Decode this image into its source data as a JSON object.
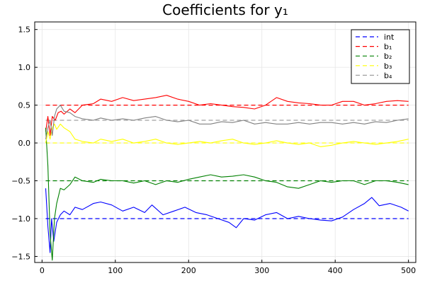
{
  "chart_data": {
    "type": "line",
    "title": "Coefficients for y₁",
    "xlabel": "",
    "ylabel": "",
    "xlim": [
      -10,
      510
    ],
    "ylim": [
      -1.58,
      1.6
    ],
    "xticks": [
      0,
      100,
      200,
      300,
      400,
      500
    ],
    "xtick_labels": [
      "0",
      "100",
      "200",
      "300",
      "400",
      "500"
    ],
    "yticks": [
      -1.5,
      -1.0,
      -0.5,
      0.0,
      0.5,
      1.0,
      1.5
    ],
    "ytick_labels": [
      "−1.5",
      "−1.0",
      "−0.5",
      "0.0",
      "0.5",
      "1.0",
      "1.5"
    ],
    "grid": true,
    "legend_position": "top-right",
    "reference_lines": [
      {
        "name": "int",
        "y": -1.0,
        "color": "#0000ff"
      },
      {
        "name": "b₁",
        "y": 0.5,
        "color": "#ff0000"
      },
      {
        "name": "b₂",
        "y": -0.5,
        "color": "#008000"
      },
      {
        "name": "b₃",
        "y": 0.0,
        "color": "#ffff00"
      },
      {
        "name": "b₄",
        "y": 0.3,
        "color": "#a0a0a0"
      }
    ],
    "series": [
      {
        "color": "#0000ff",
        "x": [
          5,
          8,
          11,
          13,
          16,
          20,
          25,
          30,
          38,
          45,
          55,
          70,
          80,
          95,
          110,
          125,
          140,
          150,
          165,
          180,
          195,
          210,
          225,
          240,
          255,
          265,
          275,
          290,
          305,
          320,
          335,
          350,
          365,
          380,
          395,
          410,
          425,
          440,
          450,
          460,
          475,
          490,
          500
        ],
        "y": [
          -0.6,
          -1.1,
          -1.45,
          -1.0,
          -1.3,
          -1.05,
          -0.95,
          -0.9,
          -0.95,
          -0.85,
          -0.88,
          -0.8,
          -0.78,
          -0.82,
          -0.9,
          -0.85,
          -0.92,
          -0.82,
          -0.95,
          -0.9,
          -0.85,
          -0.92,
          -0.95,
          -1.0,
          -1.05,
          -1.12,
          -1.0,
          -1.02,
          -0.95,
          -0.92,
          -1.0,
          -0.97,
          -1.0,
          -1.02,
          -1.03,
          -0.98,
          -0.88,
          -0.8,
          -0.72,
          -0.83,
          -0.8,
          -0.85,
          -0.9
        ]
      },
      {
        "color": "#ff0000",
        "x": [
          5,
          8,
          11,
          14,
          18,
          22,
          26,
          30,
          38,
          45,
          55,
          70,
          80,
          95,
          110,
          125,
          140,
          155,
          170,
          185,
          200,
          215,
          230,
          245,
          260,
          275,
          290,
          305,
          320,
          335,
          350,
          365,
          380,
          395,
          410,
          425,
          440,
          455,
          470,
          485,
          500
        ],
        "y": [
          0.15,
          0.35,
          0.1,
          0.35,
          0.3,
          0.4,
          0.42,
          0.38,
          0.45,
          0.4,
          0.5,
          0.52,
          0.58,
          0.55,
          0.6,
          0.56,
          0.58,
          0.6,
          0.63,
          0.58,
          0.55,
          0.5,
          0.52,
          0.5,
          0.48,
          0.47,
          0.45,
          0.5,
          0.6,
          0.55,
          0.53,
          0.52,
          0.5,
          0.5,
          0.55,
          0.55,
          0.5,
          0.52,
          0.55,
          0.56,
          0.55
        ]
      },
      {
        "color": "#008000",
        "x": [
          5,
          8,
          11,
          14,
          17,
          20,
          25,
          30,
          38,
          45,
          55,
          70,
          80,
          95,
          110,
          125,
          140,
          155,
          170,
          185,
          200,
          215,
          230,
          245,
          260,
          275,
          290,
          305,
          320,
          335,
          350,
          365,
          380,
          395,
          410,
          425,
          440,
          455,
          470,
          485,
          500
        ],
        "y": [
          0.2,
          -0.3,
          -1.2,
          -1.55,
          -1.0,
          -0.8,
          -0.6,
          -0.62,
          -0.55,
          -0.45,
          -0.5,
          -0.52,
          -0.48,
          -0.5,
          -0.5,
          -0.53,
          -0.5,
          -0.55,
          -0.5,
          -0.52,
          -0.48,
          -0.45,
          -0.42,
          -0.45,
          -0.44,
          -0.42,
          -0.45,
          -0.5,
          -0.52,
          -0.58,
          -0.6,
          -0.55,
          -0.5,
          -0.52,
          -0.5,
          -0.5,
          -0.55,
          -0.5,
          -0.5,
          -0.52,
          -0.55
        ]
      },
      {
        "color": "#ffff00",
        "x": [
          5,
          8,
          11,
          14,
          17,
          20,
          25,
          30,
          38,
          45,
          55,
          70,
          80,
          95,
          110,
          125,
          140,
          155,
          170,
          185,
          200,
          215,
          230,
          245,
          260,
          275,
          290,
          305,
          320,
          335,
          350,
          365,
          380,
          395,
          410,
          425,
          440,
          455,
          470,
          485,
          500
        ],
        "y": [
          0.0,
          0.15,
          0.05,
          0.2,
          0.25,
          0.18,
          0.25,
          0.2,
          0.15,
          0.05,
          0.02,
          0.0,
          0.05,
          0.02,
          0.05,
          0.0,
          0.02,
          0.05,
          0.0,
          -0.02,
          0.0,
          0.02,
          0.0,
          0.03,
          0.05,
          0.0,
          -0.02,
          0.0,
          0.03,
          0.0,
          -0.02,
          0.0,
          -0.05,
          -0.03,
          0.0,
          0.02,
          0.0,
          -0.02,
          0.0,
          0.02,
          0.05
        ]
      },
      {
        "color": "#808080",
        "x": [
          5,
          8,
          11,
          14,
          17,
          20,
          25,
          30,
          38,
          45,
          55,
          70,
          80,
          95,
          110,
          125,
          140,
          155,
          170,
          185,
          200,
          215,
          230,
          245,
          260,
          275,
          290,
          305,
          320,
          335,
          350,
          365,
          380,
          395,
          410,
          425,
          440,
          455,
          470,
          485,
          500
        ],
        "y": [
          0.05,
          0.2,
          0.3,
          0.1,
          0.35,
          0.45,
          0.5,
          0.42,
          0.4,
          0.35,
          0.32,
          0.3,
          0.33,
          0.3,
          0.32,
          0.3,
          0.33,
          0.35,
          0.3,
          0.28,
          0.3,
          0.25,
          0.25,
          0.28,
          0.27,
          0.3,
          0.25,
          0.27,
          0.25,
          0.25,
          0.27,
          0.25,
          0.27,
          0.27,
          0.25,
          0.27,
          0.25,
          0.28,
          0.27,
          0.3,
          0.32
        ]
      }
    ]
  }
}
